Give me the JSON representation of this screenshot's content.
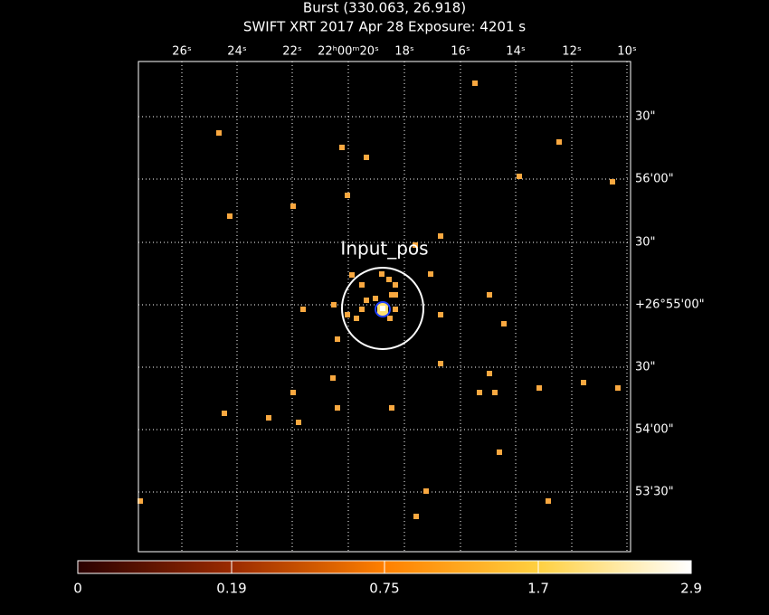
{
  "header": {
    "title": "Burst (330.063, 26.918)",
    "subtitle": "SWIFT XRT   2017 Apr 28    Exposure: 4201 s"
  },
  "annotation": "Input_pos",
  "top_axis_labels": [
    "26ˢ",
    "24ˢ",
    "22ˢ",
    "22ʰ00ᵐ20ˢ",
    "18ˢ",
    "16ˢ",
    "14ˢ",
    "12ˢ",
    "10ˢ"
  ],
  "right_axis_labels": [
    "30\"",
    "56'00\"",
    "30\"",
    "+26°55'00\"",
    "30\"",
    "54'00\"",
    "53'30\""
  ],
  "colorbar_labels": [
    "0",
    "0.19",
    "0.75",
    "1.7",
    "2.9"
  ]
}
